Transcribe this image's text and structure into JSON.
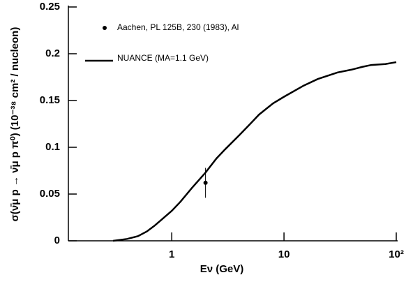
{
  "chart_data": {
    "type": "line",
    "x_label": "Eν (GeV)",
    "y_label": "σ(ν̄μ p → ν̄μ p π⁰) (10⁻³⁸ cm² / nucleon)",
    "xscale": "log",
    "xlim": [
      0.12,
      100
    ],
    "ylim": [
      0,
      0.25
    ],
    "xticks": [
      1,
      10,
      {
        "value": 100,
        "label": "10²"
      }
    ],
    "yticks": [
      0,
      0.05,
      0.1,
      0.15,
      0.2,
      0.25
    ],
    "grid": false,
    "legend": "upper left",
    "series": [
      {
        "name": "Aachen, PL 125B, 230 (1983), Al",
        "type": "scatter",
        "color": "#000000",
        "x": [
          2
        ],
        "values": [
          0.062
        ],
        "errors": [
          0.016
        ]
      },
      {
        "name": "NUANCE (MA=1.1 GeV)",
        "type": "line",
        "color": "#000000",
        "x": [
          0.3,
          0.35,
          0.4,
          0.5,
          0.6,
          0.7,
          0.8,
          1.0,
          1.2,
          1.5,
          2.0,
          2.5,
          3,
          4,
          5,
          6,
          8,
          10,
          15,
          20,
          30,
          40,
          50,
          60,
          80,
          100
        ],
        "values": [
          0.0,
          0.001,
          0.002,
          0.005,
          0.01,
          0.016,
          0.022,
          0.032,
          0.042,
          0.056,
          0.073,
          0.088,
          0.098,
          0.113,
          0.125,
          0.135,
          0.147,
          0.154,
          0.166,
          0.173,
          0.18,
          0.183,
          0.186,
          0.188,
          0.189,
          0.191
        ]
      }
    ]
  }
}
